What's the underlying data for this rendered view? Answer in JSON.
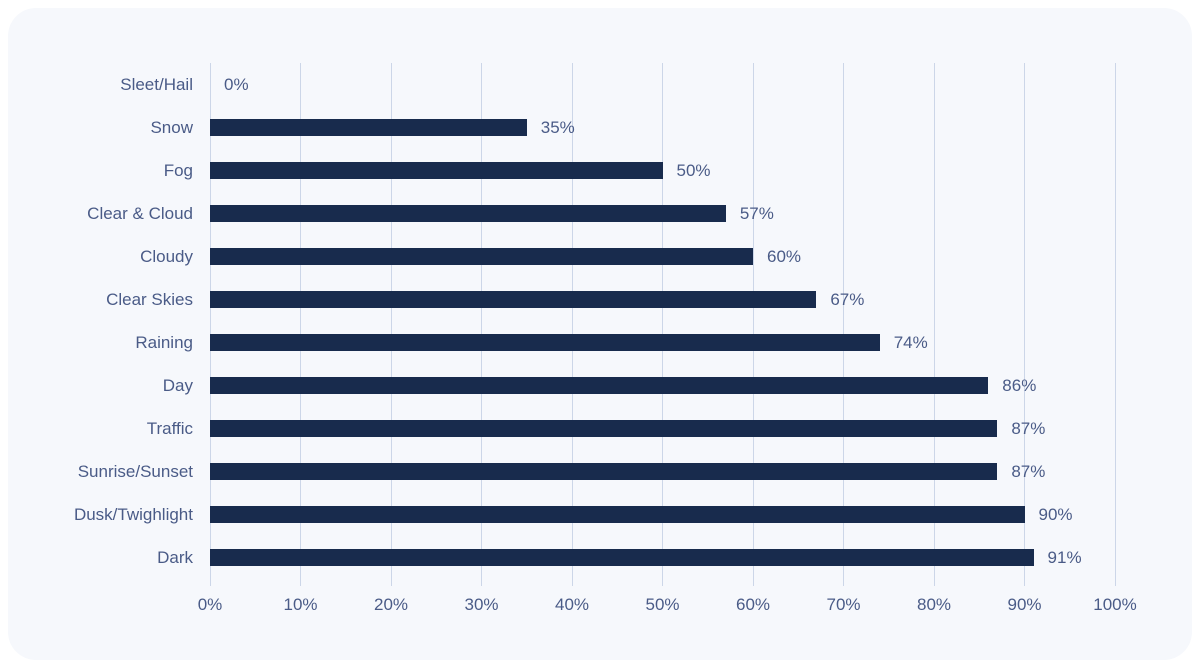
{
  "chart_data": {
    "type": "bar",
    "orientation": "horizontal",
    "title": "",
    "xlabel": "",
    "ylabel": "",
    "categories": [
      "Sleet/Hail",
      "Snow",
      "Fog",
      "Clear & Cloud",
      "Cloudy",
      "Clear Skies",
      "Raining",
      "Day",
      "Traffic",
      "Sunrise/Sunset",
      "Dusk/Twighlight",
      "Dark"
    ],
    "values": [
      0,
      35,
      50,
      57,
      60,
      67,
      74,
      86,
      87,
      87,
      90,
      91
    ],
    "value_labels": [
      "0%",
      "35%",
      "50%",
      "57%",
      "60%",
      "67%",
      "74%",
      "86%",
      "87%",
      "87%",
      "90%",
      "91%"
    ],
    "x_ticks": [
      0,
      10,
      20,
      30,
      40,
      50,
      60,
      70,
      80,
      90,
      100
    ],
    "x_tick_labels": [
      "0%",
      "10%",
      "20%",
      "30%",
      "40%",
      "50%",
      "60%",
      "70%",
      "80%",
      "90%",
      "100%"
    ],
    "xlim": [
      0,
      100
    ],
    "grid": "vertical-only",
    "legend": "none",
    "colors": {
      "bar": "#182b4d",
      "label": "#4a5b87",
      "gridline": "#ccd6e8",
      "card_bg": "#f6f8fc",
      "page_bg": "#ffffff"
    }
  }
}
